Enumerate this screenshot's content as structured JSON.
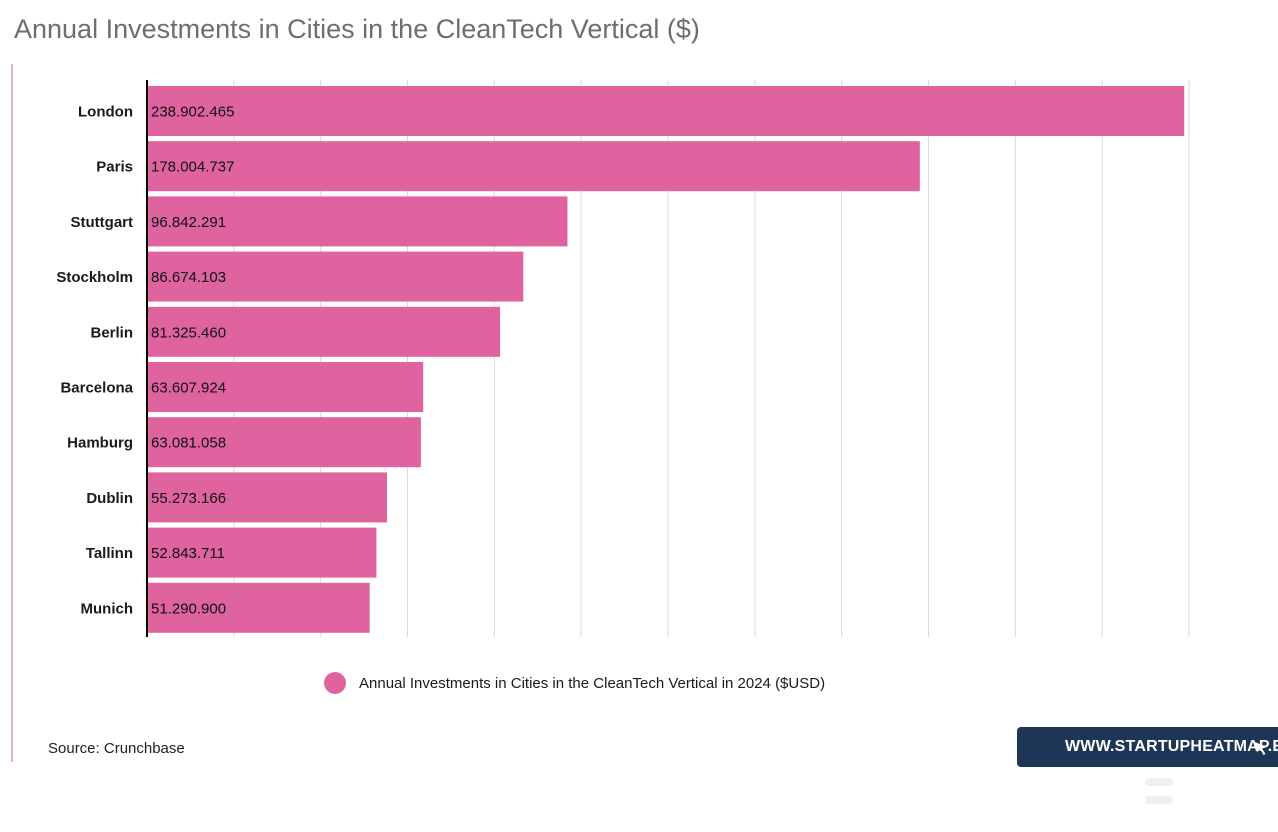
{
  "title": "Annual Investments in Cities in the CleanTech Vertical ($)",
  "source": "Source: Crunchbase",
  "brand": {
    "text": "WWW.STARTUPHEATMAP.EU",
    "icon": "cursor-arrow-icon",
    "background": "#1e3656"
  },
  "colors": {
    "bar": "#de639e",
    "grid": "#d9d9d9",
    "axis": "#000000"
  },
  "chart_data": {
    "type": "bar",
    "orientation": "horizontal",
    "categories": [
      "London",
      "Paris",
      "Stuttgart",
      "Stockholm",
      "Berlin",
      "Barcelona",
      "Hamburg",
      "Dublin",
      "Tallinn",
      "Munich"
    ],
    "series": [
      {
        "name": "Annual Investments in Cities in the CleanTech Vertical in 2024 ($USD)",
        "values": [
          238902465,
          178004737,
          96842291,
          86674103,
          81325460,
          63607924,
          63081058,
          55273166,
          52843711,
          51290900
        ],
        "labels": [
          "238.902.465",
          "178.004.737",
          "96.842.291",
          "86.674.103",
          "81.325.460",
          "63.607.924",
          "63.081.058",
          "55.273.166",
          "52.843.711",
          "51.290.900"
        ]
      }
    ],
    "xlim": [
      0,
      240000000
    ],
    "grid": true,
    "legend_position": "bottom"
  }
}
